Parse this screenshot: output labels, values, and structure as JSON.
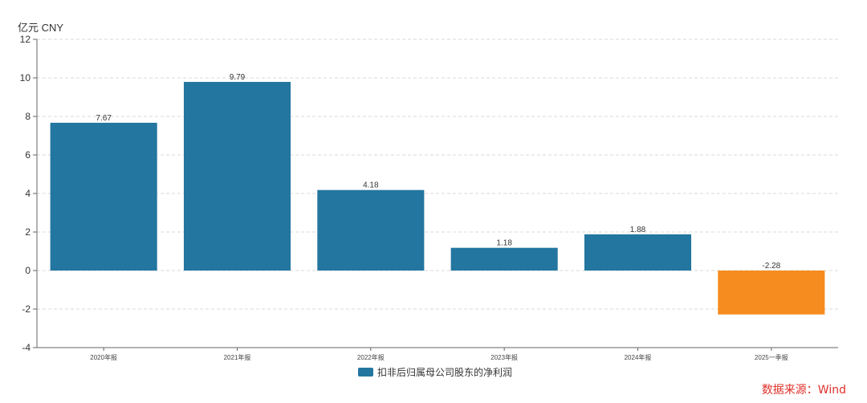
{
  "chart_data": {
    "type": "bar",
    "unit_label": "亿元 CNY",
    "categories": [
      "2020年报",
      "2021年报",
      "2022年报",
      "2023年报",
      "2024年报",
      "2025一季报"
    ],
    "values": [
      7.67,
      9.79,
      4.18,
      1.18,
      1.88,
      -2.28
    ],
    "data_labels": [
      "7.67",
      "9.79",
      "4.18",
      "1.18",
      "1.88",
      "-2.28"
    ],
    "ylim": [
      -4,
      12
    ],
    "yticks": [
      -4,
      -2,
      0,
      2,
      4,
      6,
      8,
      10,
      12
    ],
    "grid": true,
    "legend": {
      "position": "bottom",
      "entries": [
        "扣非后归属母公司股东的净利润"
      ]
    },
    "colors": {
      "positive": "#23769f",
      "negative": "#f68b1f"
    },
    "source": "数据来源：Wind"
  }
}
